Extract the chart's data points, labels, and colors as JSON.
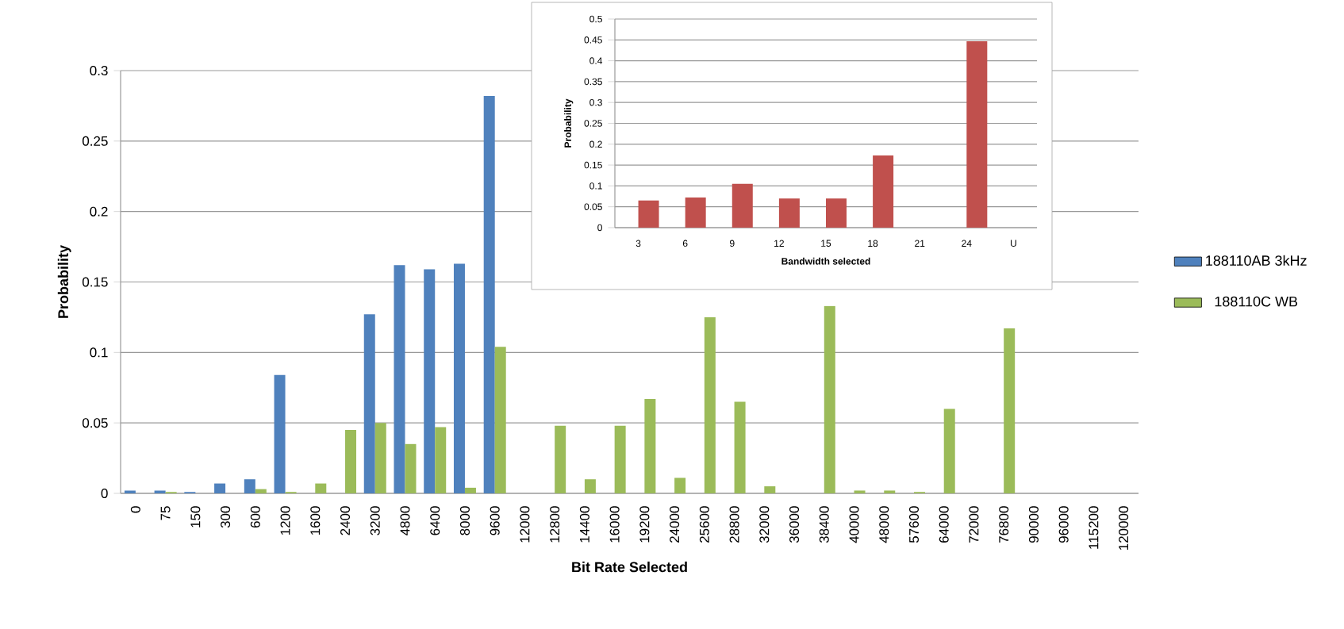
{
  "chart_data": [
    {
      "type": "bar",
      "xlabel": "Bit Rate Selected",
      "ylabel": "Probability",
      "categories": [
        "0",
        "75",
        "150",
        "300",
        "600",
        "1200",
        "1600",
        "2400",
        "3200",
        "4800",
        "6400",
        "8000",
        "9600",
        "12000",
        "12800",
        "14400",
        "16000",
        "19200",
        "24000",
        "25600",
        "28800",
        "32000",
        "36000",
        "38400",
        "40000",
        "48000",
        "57600",
        "64000",
        "72000",
        "76800",
        "90000",
        "96000",
        "115200",
        "120000"
      ],
      "series": [
        {
          "name": "188110AB 3kHz",
          "color": "#4f81bd",
          "values": [
            0.002,
            0.002,
            0.001,
            0.007,
            0.01,
            0.084,
            0,
            0,
            0.127,
            0.162,
            0.159,
            0.163,
            0.282,
            0,
            0,
            0,
            0,
            0,
            0,
            0,
            0,
            0,
            0,
            0,
            0,
            0,
            0,
            0,
            0,
            0,
            0,
            0,
            0,
            0
          ]
        },
        {
          "name": "188110C WB",
          "color": "#9bbb59",
          "values": [
            0,
            0.001,
            0,
            0,
            0.003,
            0.001,
            0.007,
            0.045,
            0.05,
            0.035,
            0.047,
            0.004,
            0.104,
            0,
            0.048,
            0.01,
            0.048,
            0.067,
            0.011,
            0.125,
            0.065,
            0.005,
            0,
            0.133,
            0.002,
            0.002,
            0.001,
            0.06,
            0,
            0.117,
            0,
            0,
            0,
            0
          ]
        }
      ],
      "ylim": [
        0,
        0.3
      ],
      "yticks": [
        0,
        0.05,
        0.1,
        0.15,
        0.2,
        0.25,
        0.3
      ],
      "grid": "y",
      "legend": "right"
    },
    {
      "type": "bar",
      "xlabel": "Bandwidth selected",
      "ylabel": "Probability",
      "categories": [
        "3",
        "6",
        "9",
        "12",
        "15",
        "18",
        "21",
        "24",
        "U"
      ],
      "series": [
        {
          "color": "#c0504d",
          "values": [
            0.065,
            0.072,
            0.105,
            0.07,
            0.07,
            0.173,
            0,
            0.447,
            0
          ]
        }
      ],
      "ylim": [
        0,
        0.5
      ],
      "yticks": [
        0,
        0.05,
        0.1,
        0.15,
        0.2,
        0.25,
        0.3,
        0.35,
        0.4,
        0.45,
        0.5
      ],
      "grid": "y"
    }
  ]
}
